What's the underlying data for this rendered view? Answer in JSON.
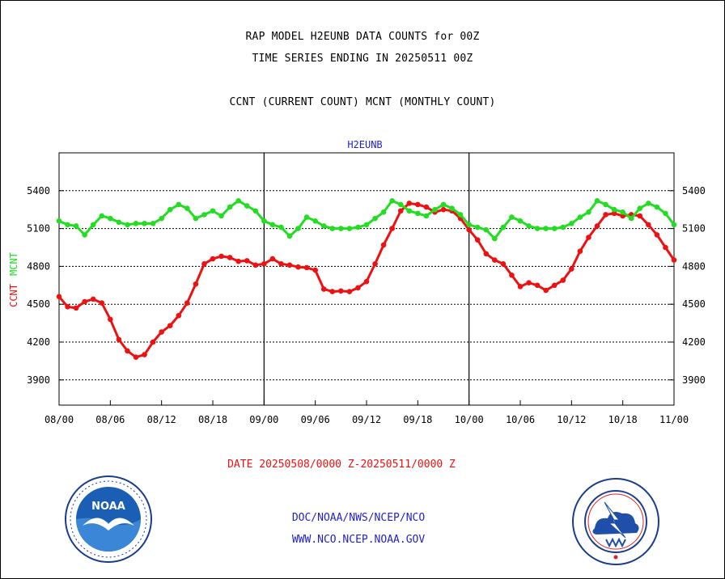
{
  "header": {
    "title_line1": "RAP MODEL H2EUNB DATA COUNTS for 00Z",
    "title_line2": "TIME SERIES ENDING IN 20250511 00Z",
    "subtitle": "CCNT (CURRENT COUNT) MCNT (MONTHLY COUNT)"
  },
  "colors": {
    "ccnt": "#ee1111",
    "mcnt": "#22dd22",
    "label_blue": "#2222cc",
    "grid": "#000000"
  },
  "chart_data": {
    "type": "line",
    "title": "H2EUNB",
    "ylabel_ccnt": "CCNT",
    "ylabel_mcnt": "MCNT",
    "xlabel": "DATE 20250508/0000 Z-20250511/0000 Z",
    "ylim": [
      3700,
      5700
    ],
    "yticks": [
      3900,
      4200,
      4500,
      4800,
      5100,
      5400
    ],
    "xlim": [
      0,
      72
    ],
    "xticks": [
      0,
      6,
      12,
      18,
      24,
      30,
      36,
      42,
      48,
      54,
      60,
      66,
      72
    ],
    "xtick_labels": [
      "08/00",
      "08/06",
      "08/12",
      "08/18",
      "09/00",
      "09/06",
      "09/12",
      "09/18",
      "10/00",
      "10/06",
      "10/12",
      "10/18",
      "11/00"
    ],
    "day_dividers": [
      24,
      48
    ],
    "grid": "horizontal dotted",
    "series": [
      {
        "name": "CCNT",
        "color": "#ee1111",
        "values": [
          4560,
          4480,
          4470,
          4520,
          4540,
          4510,
          4380,
          4220,
          4130,
          4080,
          4100,
          4200,
          4280,
          4330,
          4410,
          4510,
          4660,
          4820,
          4860,
          4880,
          4870,
          4840,
          4845,
          4810,
          4820,
          4860,
          4820,
          4810,
          4795,
          4790,
          4770,
          4620,
          4600,
          4605,
          4600,
          4630,
          4680,
          4820,
          4970,
          5100,
          5240,
          5300,
          5290,
          5270,
          5230,
          5250,
          5240,
          5180,
          5090,
          5010,
          4900,
          4850,
          4820,
          4730,
          4640,
          4670,
          4650,
          4610,
          4650,
          4690,
          4780,
          4920,
          5030,
          5120,
          5210,
          5220,
          5200,
          5210,
          5200,
          5130,
          5050,
          4950,
          4850
        ]
      },
      {
        "name": "MCNT",
        "color": "#22dd22",
        "values": [
          5160,
          5130,
          5120,
          5050,
          5130,
          5200,
          5180,
          5150,
          5130,
          5140,
          5140,
          5140,
          5180,
          5250,
          5290,
          5260,
          5180,
          5210,
          5240,
          5200,
          5270,
          5320,
          5280,
          5240,
          5160,
          5130,
          5110,
          5040,
          5100,
          5190,
          5160,
          5120,
          5100,
          5100,
          5100,
          5110,
          5130,
          5180,
          5230,
          5320,
          5290,
          5240,
          5220,
          5200,
          5250,
          5290,
          5260,
          5210,
          5130,
          5110,
          5090,
          5020,
          5110,
          5190,
          5160,
          5120,
          5100,
          5100,
          5100,
          5110,
          5140,
          5190,
          5230,
          5320,
          5290,
          5250,
          5230,
          5180,
          5260,
          5300,
          5270,
          5220,
          5130
        ]
      }
    ]
  },
  "footer": {
    "link1": "DOC/NOAA/NWS/NCEP/NCO",
    "link2": "WWW.NCO.NCEP.NOAA.GOV",
    "noaa_logo_text": "NOAA",
    "noaa_seal_text": "NATIONAL OCEANIC AND ATMOSPHERIC ADMINISTRATION",
    "noaa_seal_bottom": "U.S. DEPARTMENT OF COMMERCE",
    "nws_seal_text": "NATIONAL WEATHER SERVICE"
  }
}
